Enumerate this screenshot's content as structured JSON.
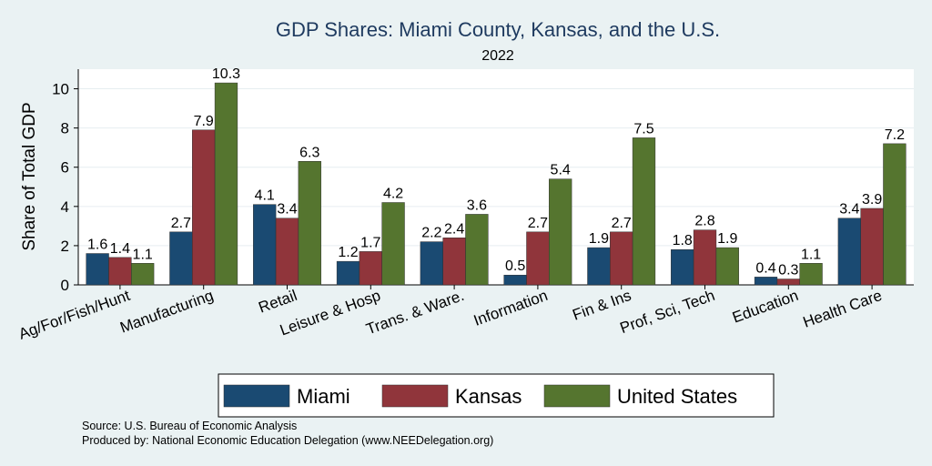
{
  "chart_data": {
    "type": "bar",
    "title": "GDP Shares: Miami County, Kansas, and the U.S.",
    "subtitle": "2022",
    "ylabel": "Share of Total GDP",
    "xlabel": "",
    "ylim": [
      0,
      11
    ],
    "yticks": [
      0,
      2,
      4,
      6,
      8,
      10
    ],
    "grid": true,
    "legend_position": "bottom",
    "categories": [
      "Ag/For/Fish/Hunt",
      "Manufacturing",
      "Retail",
      "Leisure & Hosp",
      "Trans. & Ware.",
      "Information",
      "Fin & Ins",
      "Prof, Sci, Tech",
      "Education",
      "Health Care"
    ],
    "series": [
      {
        "name": "Miami",
        "color": "#1a4a72",
        "values": [
          1.6,
          2.7,
          4.1,
          1.2,
          2.2,
          0.5,
          1.9,
          1.8,
          0.4,
          3.4
        ]
      },
      {
        "name": "Kansas",
        "color": "#90353b",
        "values": [
          1.4,
          7.9,
          3.4,
          1.7,
          2.4,
          2.7,
          2.7,
          2.8,
          0.3,
          3.9
        ]
      },
      {
        "name": "United States",
        "color": "#55752f",
        "values": [
          1.1,
          10.3,
          6.3,
          4.2,
          3.6,
          5.4,
          7.5,
          1.9,
          1.1,
          7.2
        ]
      }
    ]
  },
  "notes": {
    "source": "Source: U.S. Bureau of Economic Analysis",
    "produced_by": "Produced by: National Economic Education Delegation (www.NEEDelegation.org)"
  }
}
